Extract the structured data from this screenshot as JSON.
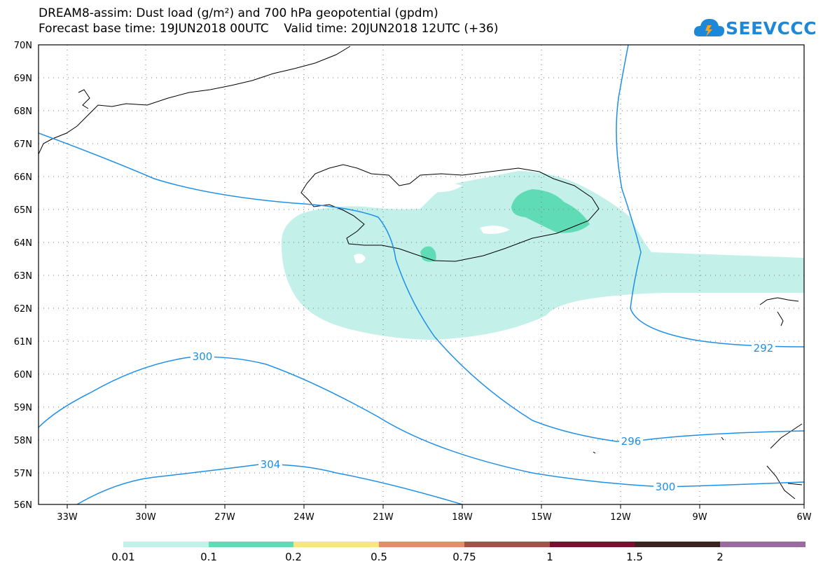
{
  "title": {
    "line1": "DREAM8-assim: Dust load (g/m²) and 700 hPa geopotential (gpdm)",
    "line2": "Forecast base time: 19JUN2018 00UTC    Valid time: 20JUN2018 12UTC (+36)"
  },
  "logo": {
    "text": "SEEVCCC",
    "icon": "cloud-icon",
    "color": "#1e88d8"
  },
  "map": {
    "lat_labels": [
      "70N",
      "69N",
      "68N",
      "67N",
      "66N",
      "65N",
      "64N",
      "63N",
      "62N",
      "61N",
      "60N",
      "59N",
      "58N",
      "57N",
      "56N"
    ],
    "lon_labels": [
      "33W",
      "30W",
      "27W",
      "24W",
      "21W",
      "18W",
      "15W",
      "12W",
      "9W",
      "6W"
    ],
    "contour_labels": [
      "300",
      "304",
      "296",
      "300",
      "292"
    ],
    "contour_color": "#1e8fe8"
  },
  "colorbar": {
    "colors": [
      "#c4f0ea",
      "#5fdcb5",
      "#f7e77e",
      "#e68c6a",
      "#a3524a",
      "#7a1030",
      "#3a2420",
      "#9a6aa0"
    ],
    "labels": [
      "0.01",
      "0.1",
      "0.2",
      "0.5",
      "0.75",
      "1",
      "1.5",
      "2"
    ]
  }
}
